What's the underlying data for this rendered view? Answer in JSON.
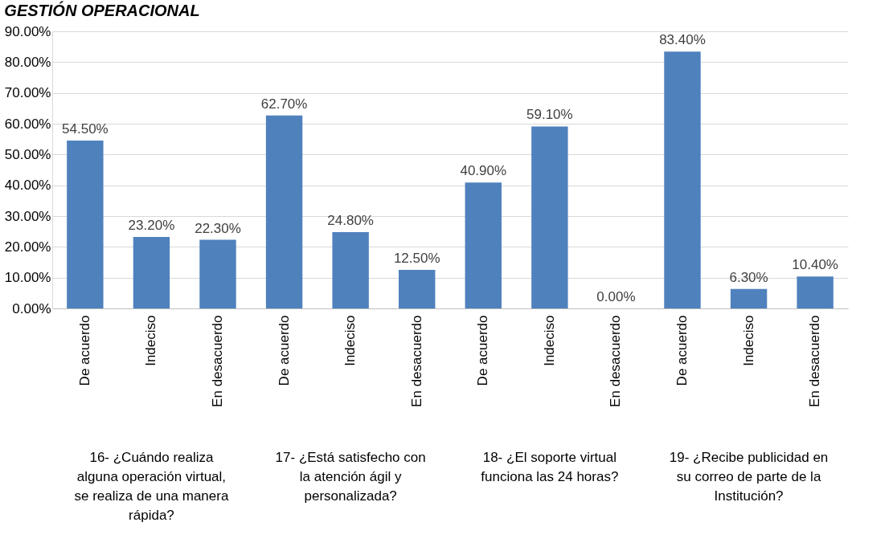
{
  "chart_data": {
    "type": "bar",
    "title": "GESTIÓN OPERACIONAL",
    "categories": [
      "De acuerdo",
      "Indeciso",
      "En desacuerdo",
      "De acuerdo",
      "Indeciso",
      "En desacuerdo",
      "De acuerdo",
      "Indeciso",
      "En desacuerdo",
      "De acuerdo",
      "Indeciso",
      "En desacuerdo"
    ],
    "series": [
      {
        "color": "#4f81bd",
        "values": [
          54.5,
          23.2,
          22.3,
          62.7,
          24.8,
          12.5,
          40.9,
          59.1,
          0.0,
          83.4,
          6.3,
          10.4
        ]
      }
    ],
    "value_labels": [
      "54.50%",
      "23.20%",
      "22.30%",
      "62.70%",
      "24.80%",
      "12.50%",
      "40.90%",
      "59.10%",
      "0.00%",
      "83.40%",
      "6.30%",
      "10.40%"
    ],
    "ylim": [
      0,
      90
    ],
    "yticks": [
      {
        "value": 0,
        "label": "0.00%"
      },
      {
        "value": 10,
        "label": "10.00%"
      },
      {
        "value": 20,
        "label": "20.00%"
      },
      {
        "value": 30,
        "label": "30.00%"
      },
      {
        "value": 40,
        "label": "40.00%"
      },
      {
        "value": 50,
        "label": "50.00%"
      },
      {
        "value": 60,
        "label": "60.00%"
      },
      {
        "value": 70,
        "label": "70.00%"
      },
      {
        "value": 80,
        "label": "80.00%"
      },
      {
        "value": 90,
        "label": "90.00%"
      }
    ],
    "annotations": [
      "16-   ¿Cuándo realiza alguna operación virtual, se realiza de una manera rápida?",
      "17-   ¿Está satisfecho con la atención ágil y personalizada?",
      "18-   ¿El soporte virtual funciona las 24 horas?",
      "19-   ¿Recibe publicidad en su correo de parte de la Institución?"
    ],
    "grid": "y"
  }
}
